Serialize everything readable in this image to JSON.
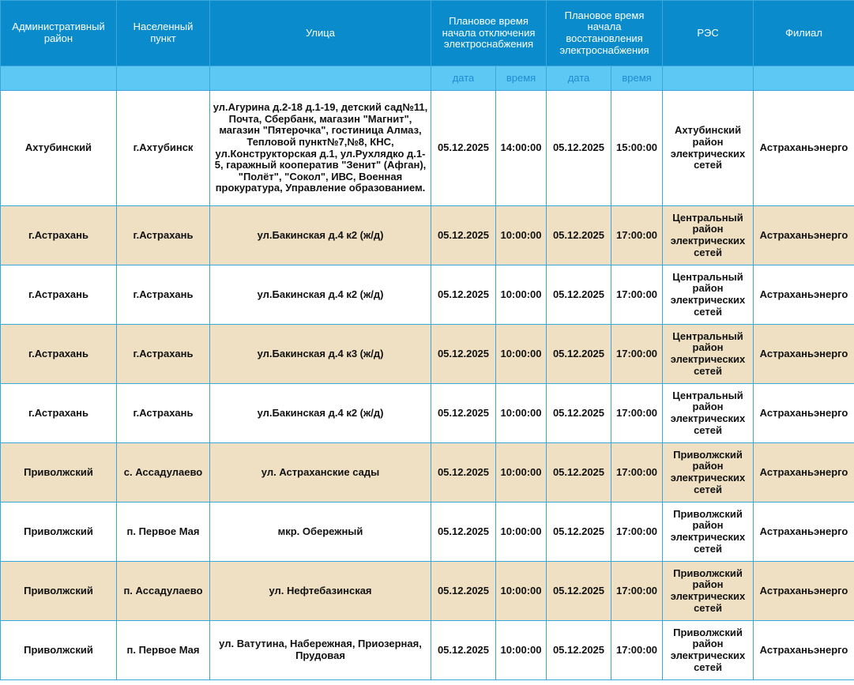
{
  "table": {
    "headers": [
      "Административный район",
      "Населенный пункт",
      "Улица",
      "Плановое время начала отключения электроснабжения",
      "Плановое время начала восстановления электроснабжения",
      "РЭС",
      "Филиал"
    ],
    "subheaders": [
      "дата",
      "время",
      "дата",
      "время"
    ],
    "rows": [
      [
        "Ахтубинский",
        "г.Ахтубинск",
        "ул.Агурина д.2-18 д.1-19, детский сад№11, Почта, Сбербанк, магазин \"Магнит\", магазин \"Пятерочка\", гостиница Алмаз, Тепловой пункт№7,№8, КНС, ул.Конструкторская д.1, ул.Рухлядко д.1-5, гаражный кооператив \"Зенит\" (Афган), \"Полёт\", \"Сокол\", ИВС, Военная прокуратура, Управление образованием.",
        "05.12.2025",
        "14:00:00",
        "05.12.2025",
        "15:00:00",
        "Ахтубинский район электрических сетей",
        "Астраханьэнерго"
      ],
      [
        "г.Астрахань",
        "г.Астрахань",
        "ул.Бакинская д.4 к2 (ж/д)",
        "05.12.2025",
        "10:00:00",
        "05.12.2025",
        "17:00:00",
        "Центральный район электрических сетей",
        "Астраханьэнерго"
      ],
      [
        "г.Астрахань",
        "г.Астрахань",
        "ул.Бакинская д.4 к2 (ж/д)",
        "05.12.2025",
        "10:00:00",
        "05.12.2025",
        "17:00:00",
        "Центральный район электрических сетей",
        "Астраханьэнерго"
      ],
      [
        "г.Астрахань",
        "г.Астрахань",
        "ул.Бакинская д.4 к3 (ж/д)",
        "05.12.2025",
        "10:00:00",
        "05.12.2025",
        "17:00:00",
        "Центральный район электрических сетей",
        "Астраханьэнерго"
      ],
      [
        "г.Астрахань",
        "г.Астрахань",
        "ул.Бакинская д.4 к2 (ж/д)",
        "05.12.2025",
        "10:00:00",
        "05.12.2025",
        "17:00:00",
        "Центральный район электрических сетей",
        "Астраханьэнерго"
      ],
      [
        "Приволжский",
        "с. Ассадулаево",
        "ул. Астраханские сады",
        "05.12.2025",
        "10:00:00",
        "05.12.2025",
        "17:00:00",
        "Приволжский район электрических сетей",
        "Астраханьэнерго"
      ],
      [
        "Приволжский",
        "п. Первое Мая",
        "мкр. Обережный",
        "05.12.2025",
        "10:00:00",
        "05.12.2025",
        "17:00:00",
        "Приволжский район электрических сетей",
        "Астраханьэнерго"
      ],
      [
        "Приволжский",
        "п. Ассадулаево",
        "ул. Нефтебазинская",
        "05.12.2025",
        "10:00:00",
        "05.12.2025",
        "17:00:00",
        "Приволжский район электрических сетей",
        "Астраханьэнерго"
      ],
      [
        "Приволжский",
        "п. Первое Мая",
        "ул. Ватутина, Набережная, Приозерная, Прудовая",
        "05.12.2025",
        "10:00:00",
        "05.12.2025",
        "17:00:00",
        "Приволжский район электрических сетей",
        "Астраханьэнерго"
      ]
    ]
  }
}
